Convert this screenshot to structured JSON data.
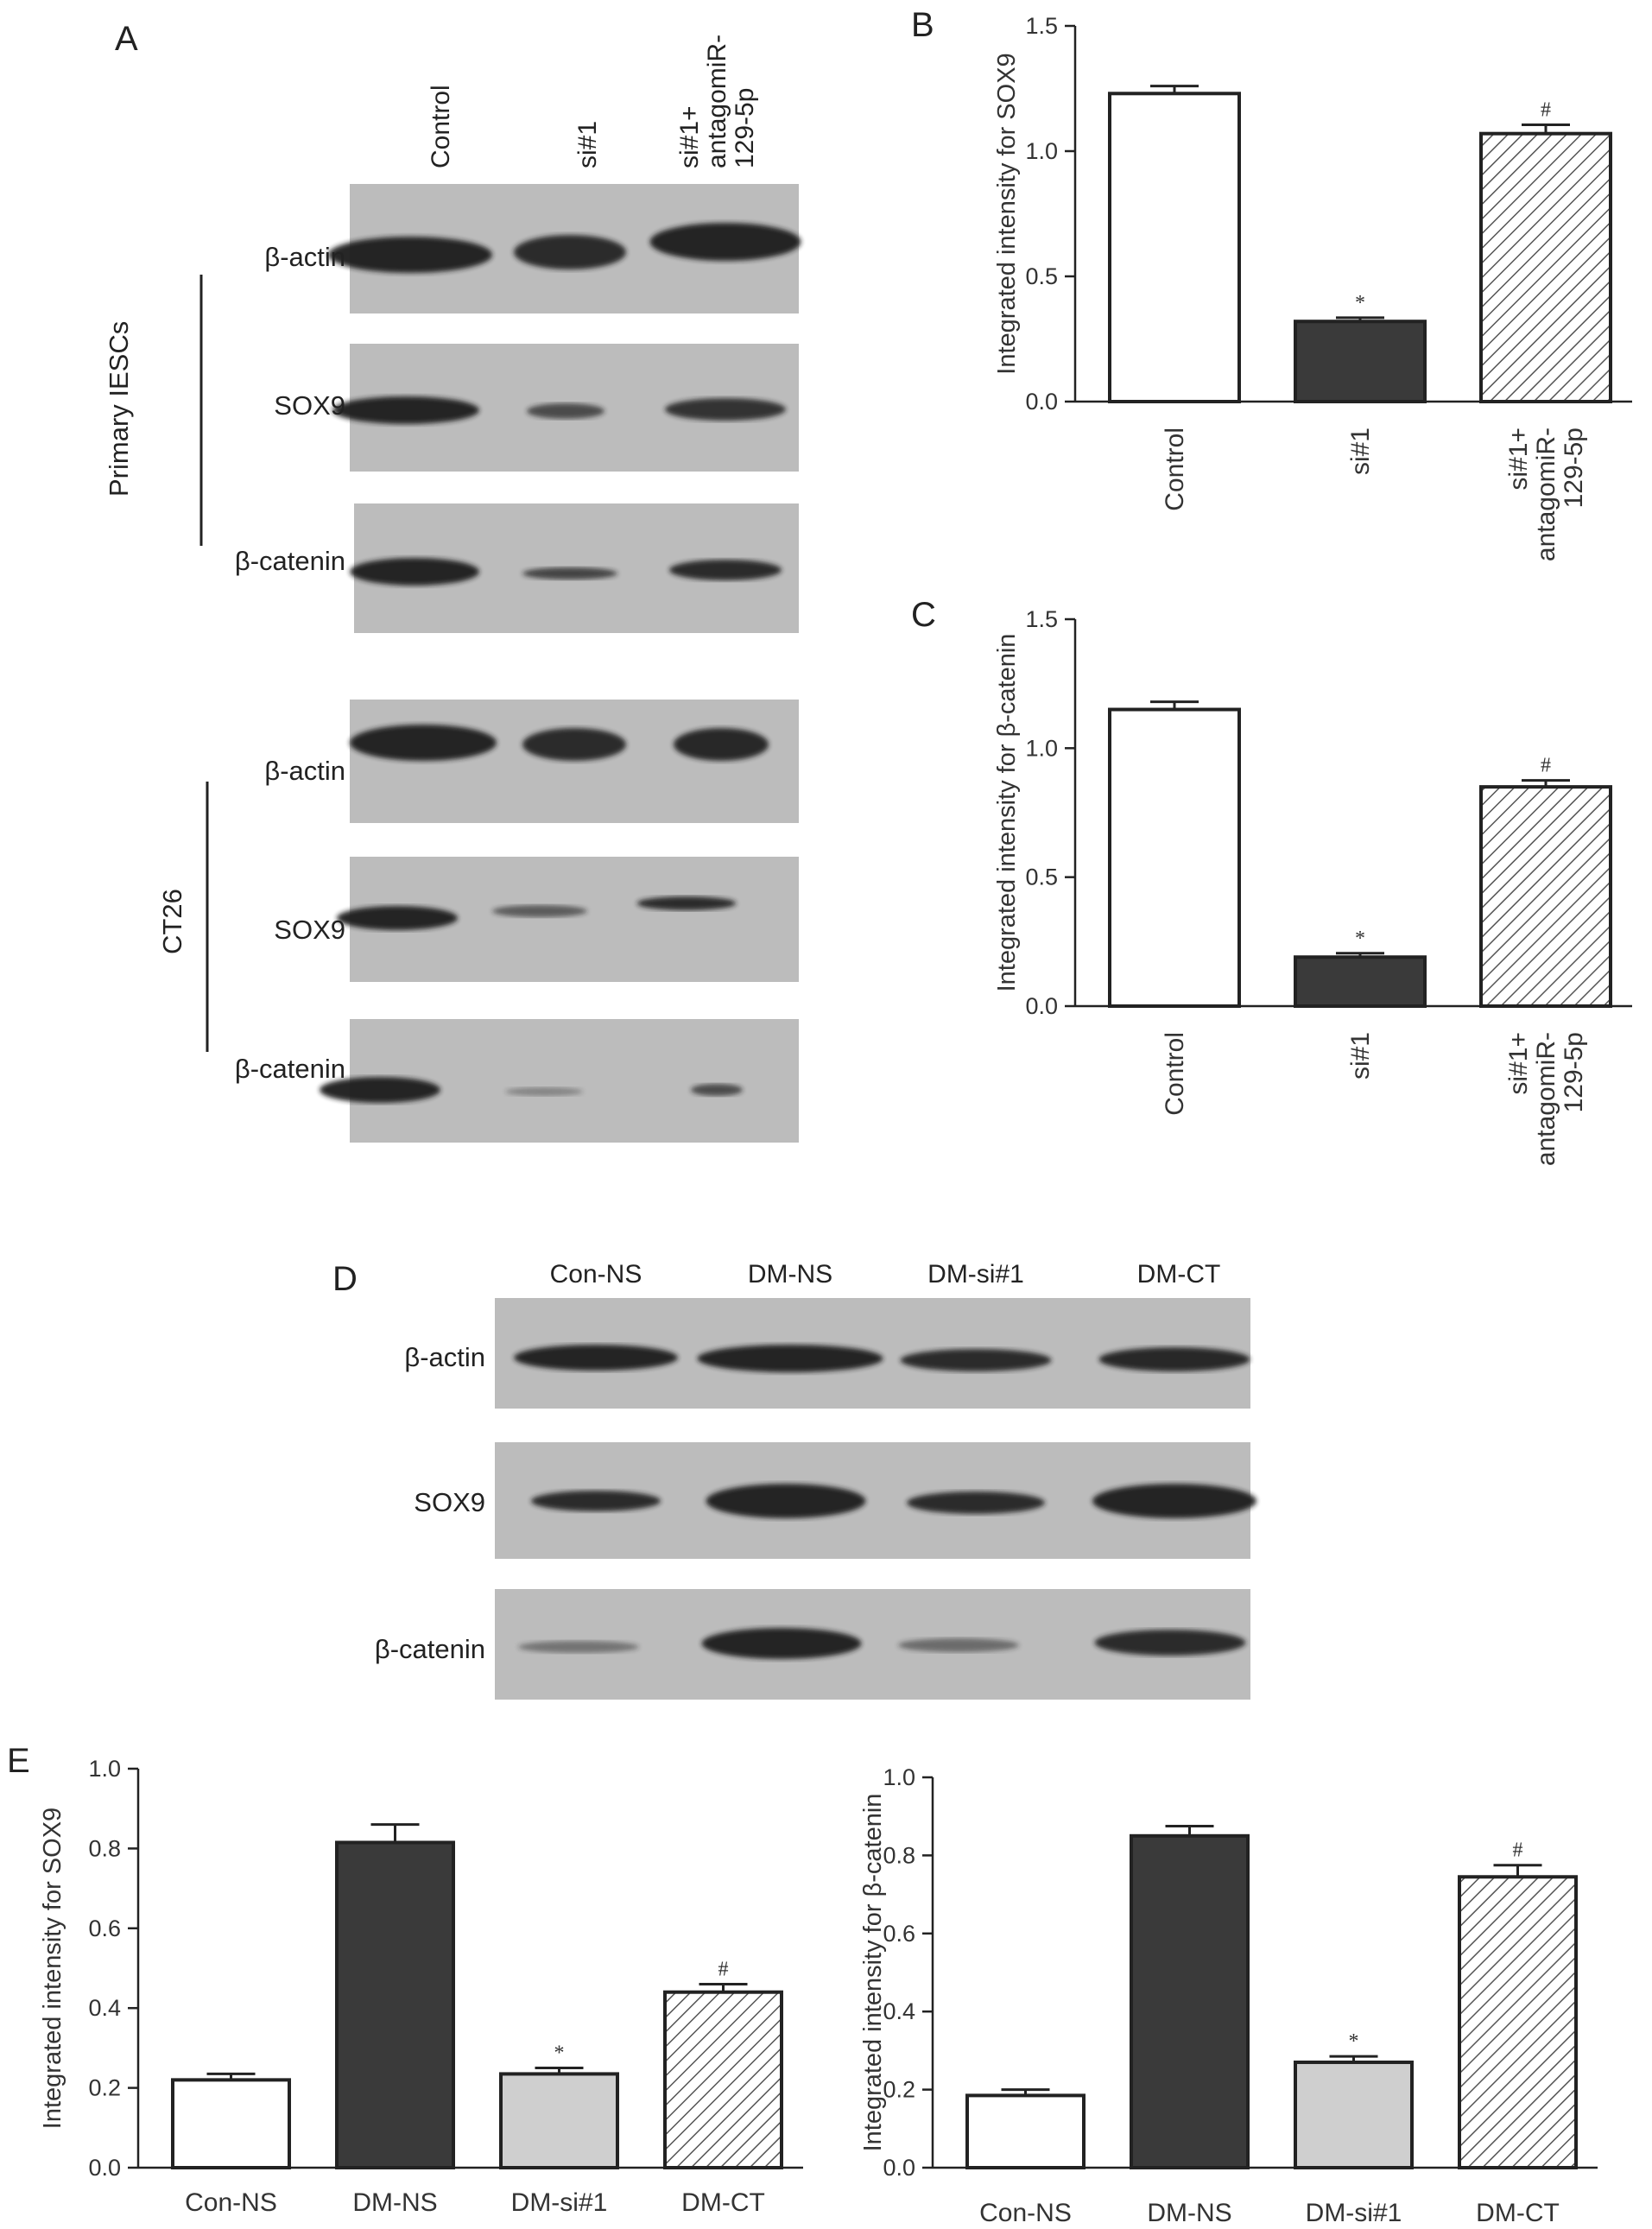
{
  "panels": {
    "A": "A",
    "B": "B",
    "C": "C",
    "D": "D",
    "E": "E"
  },
  "panelA": {
    "lanes": [
      "Control",
      "si#1",
      "si#1+\nantagomiR-\n129-5p"
    ],
    "groups": [
      "Primary IESCs",
      "CT26"
    ],
    "rows": [
      "β-actin",
      "SOX9",
      "β-catenin",
      "β-actin",
      "SOX9",
      "β-catenin"
    ]
  },
  "panelD": {
    "lanes": [
      "Con-NS",
      "DM-NS",
      "DM-si#1",
      "DM-CT"
    ],
    "rows": [
      "β-actin",
      "SOX9",
      "β-catenin"
    ]
  },
  "colors": {
    "white_fill": "#ffffff",
    "dark_fill": "#3a3a3a",
    "light_fill": "#cfcfcf",
    "hatch_fill": "hatched",
    "blot_background": "#bcbcbc",
    "band": "#1e1e1e"
  },
  "chart_data": [
    {
      "id": "B",
      "type": "bar",
      "ylabel": "Integrated intensity for SOX9",
      "xlabel": "",
      "categories": [
        "Control",
        "si#1",
        "si#1+\nantagomiR-\n129-5p"
      ],
      "values": [
        1.23,
        0.32,
        1.07
      ],
      "errors": [
        0.03,
        0.015,
        0.035
      ],
      "fills": [
        "white",
        "dark",
        "hatch"
      ],
      "significance": [
        "",
        "*",
        "#"
      ],
      "ylim": [
        0,
        1.5
      ],
      "yticks": [
        "0.0",
        "0.5",
        "1.0",
        "1.5"
      ]
    },
    {
      "id": "C",
      "type": "bar",
      "ylabel": "Integrated intensity for β-catenin",
      "xlabel": "",
      "categories": [
        "Control",
        "si#1",
        "si#1+\nantagomiR-\n129-5p"
      ],
      "values": [
        1.15,
        0.19,
        0.85
      ],
      "errors": [
        0.03,
        0.015,
        0.025
      ],
      "fills": [
        "white",
        "dark",
        "hatch"
      ],
      "significance": [
        "",
        "*",
        "#"
      ],
      "ylim": [
        0,
        1.5
      ],
      "yticks": [
        "0.0",
        "0.5",
        "1.0",
        "1.5"
      ]
    },
    {
      "id": "E1",
      "type": "bar",
      "ylabel": "Integrated intensity for SOX9",
      "xlabel": "",
      "categories": [
        "Con-NS",
        "DM-NS",
        "DM-si#1",
        "DM-CT"
      ],
      "values": [
        0.22,
        0.815,
        0.235,
        0.44
      ],
      "errors": [
        0.015,
        0.045,
        0.015,
        0.02
      ],
      "fills": [
        "white",
        "dark",
        "light",
        "hatch"
      ],
      "significance": [
        "",
        "",
        "*",
        "#"
      ],
      "ylim": [
        0,
        1.0
      ],
      "yticks": [
        "0.0",
        "0.2",
        "0.4",
        "0.6",
        "0.8",
        "1.0"
      ]
    },
    {
      "id": "E2",
      "type": "bar",
      "ylabel": "Integrated intensity for β-catenin",
      "xlabel": "",
      "categories": [
        "Con-NS",
        "DM-NS",
        "DM-si#1",
        "DM-CT"
      ],
      "values": [
        0.185,
        0.85,
        0.27,
        0.745
      ],
      "errors": [
        0.015,
        0.025,
        0.015,
        0.03
      ],
      "fills": [
        "white",
        "dark",
        "light",
        "hatch"
      ],
      "significance": [
        "",
        "",
        "*",
        "#"
      ],
      "ylim": [
        0,
        1.0
      ],
      "yticks": [
        "0.0",
        "0.2",
        "0.4",
        "0.6",
        "0.8",
        "1.0"
      ]
    }
  ]
}
